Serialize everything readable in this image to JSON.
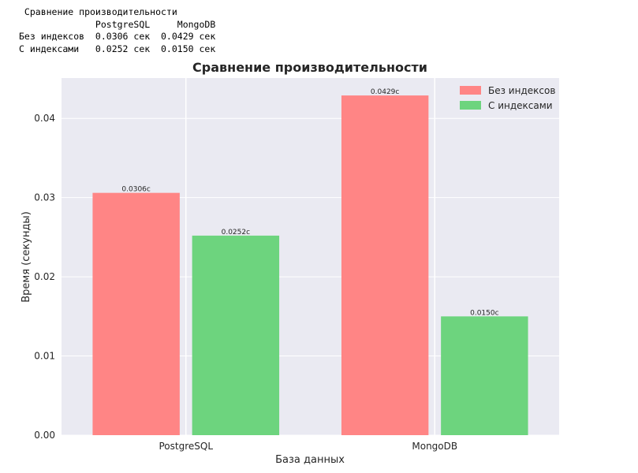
{
  "text_output": {
    "lines": [
      " Сравнение производительности",
      "              PostgreSQL     MongoDB",
      "Без индексов  0.0306 сек  0.0429 сек",
      "С индексами   0.0252 сек  0.0150 сек"
    ]
  },
  "chart_data": {
    "type": "bar",
    "title": "Сравнение производительности",
    "xlabel": "База данных",
    "ylabel": "Время (секунды)",
    "categories": [
      "PostgreSQL",
      "MongoDB"
    ],
    "series": [
      {
        "name": "Без индексов",
        "values": [
          0.0306,
          0.0429
        ],
        "labels": [
          "0.0306с",
          "0.0429с"
        ],
        "color": "#ff8585"
      },
      {
        "name": "С индексами",
        "values": [
          0.0252,
          0.015
        ],
        "labels": [
          "0.0252с",
          "0.0150с"
        ],
        "color": "#6dd47e"
      }
    ],
    "ylim": [
      0,
      0.0451
    ],
    "yticks": [
      "0.00",
      "0.01",
      "0.02",
      "0.03",
      "0.04"
    ],
    "grid": true,
    "legend": "top-right",
    "background": "#eaeaf2"
  }
}
